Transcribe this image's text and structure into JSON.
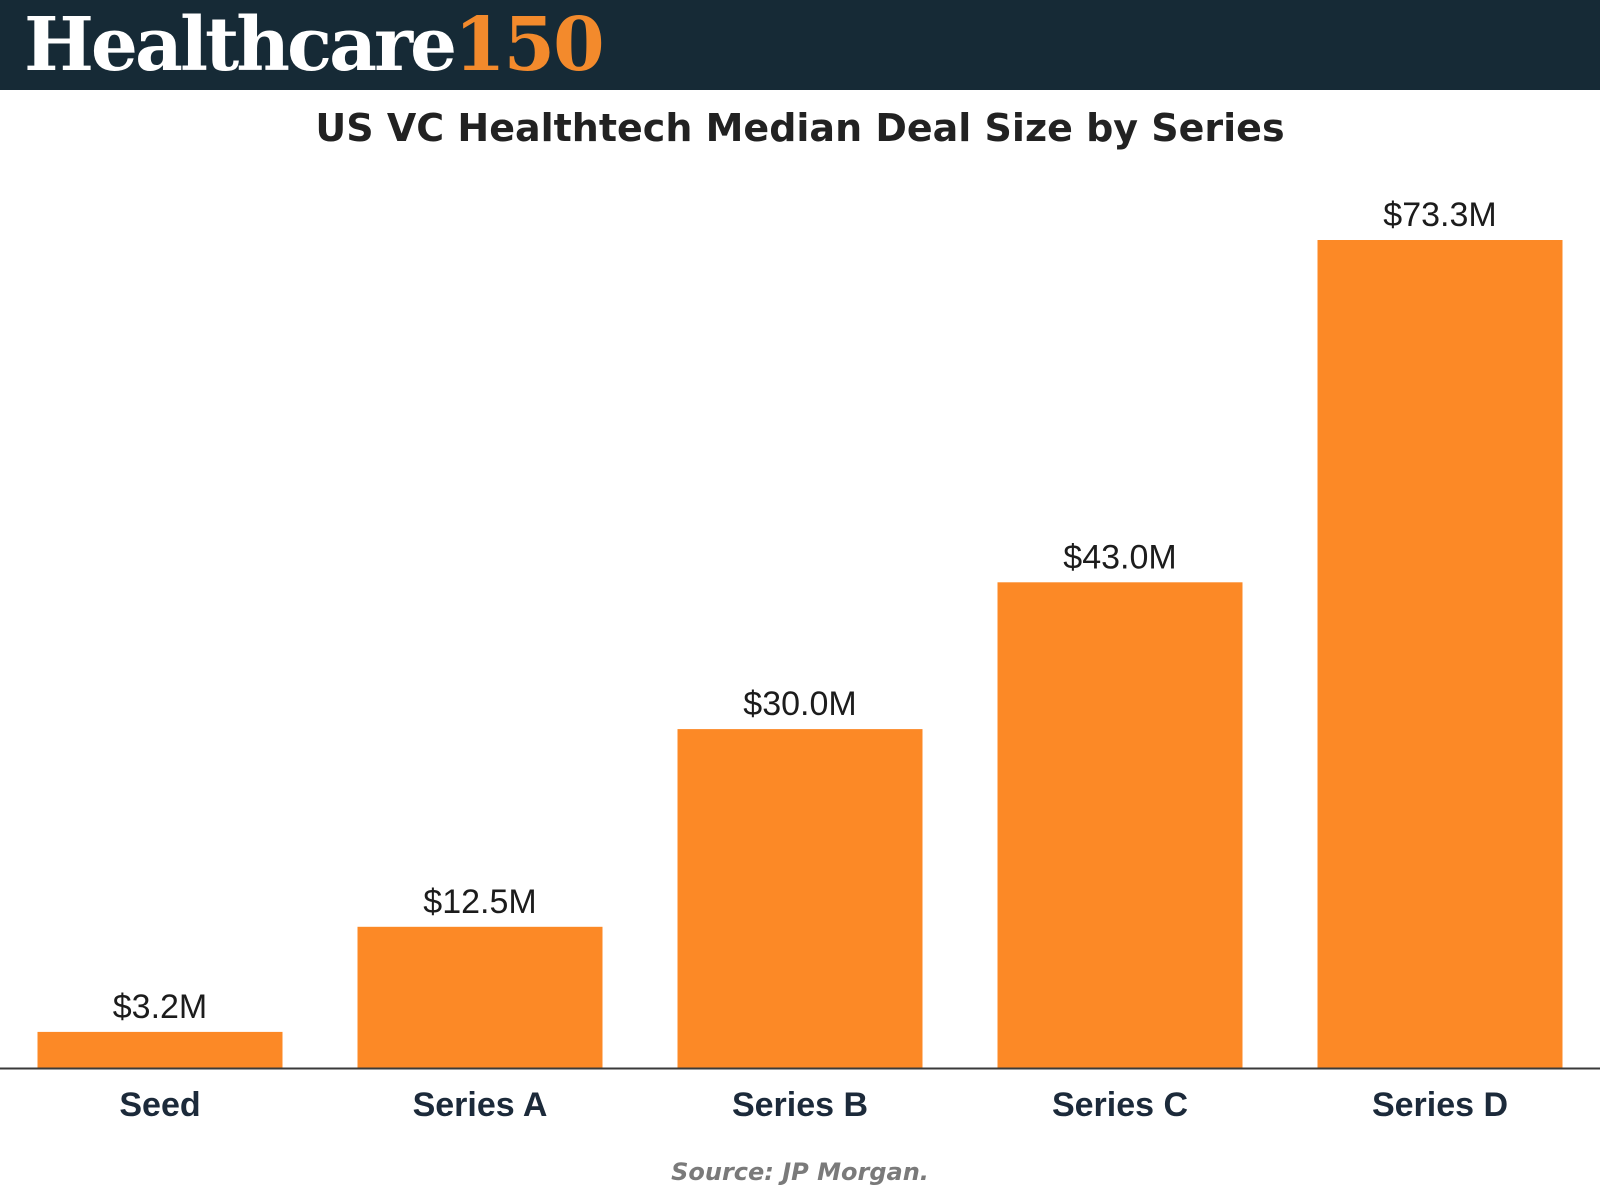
{
  "header": {
    "brand_name": "Healthcare",
    "brand_number": "150",
    "background_color": "#162a36",
    "accent_color": "#f38a2c"
  },
  "chart_data": {
    "type": "bar",
    "title": "US VC Healthtech Median Deal Size by Series",
    "categories": [
      "Seed",
      "Series A",
      "Series B",
      "Series C",
      "Series D"
    ],
    "values": [
      3.2,
      12.5,
      30.0,
      43.0,
      73.3
    ],
    "value_labels": [
      "$3.2M",
      "$12.5M",
      "$30.0M",
      "$43.0M",
      "$73.3M"
    ],
    "unit": "USD millions",
    "xlabel": "",
    "ylabel": "",
    "ylim": [
      0,
      73.3
    ],
    "grid": false,
    "legend": "none",
    "bar_color": "#fc8926"
  },
  "footer": {
    "source": "Source: JP Morgan."
  }
}
